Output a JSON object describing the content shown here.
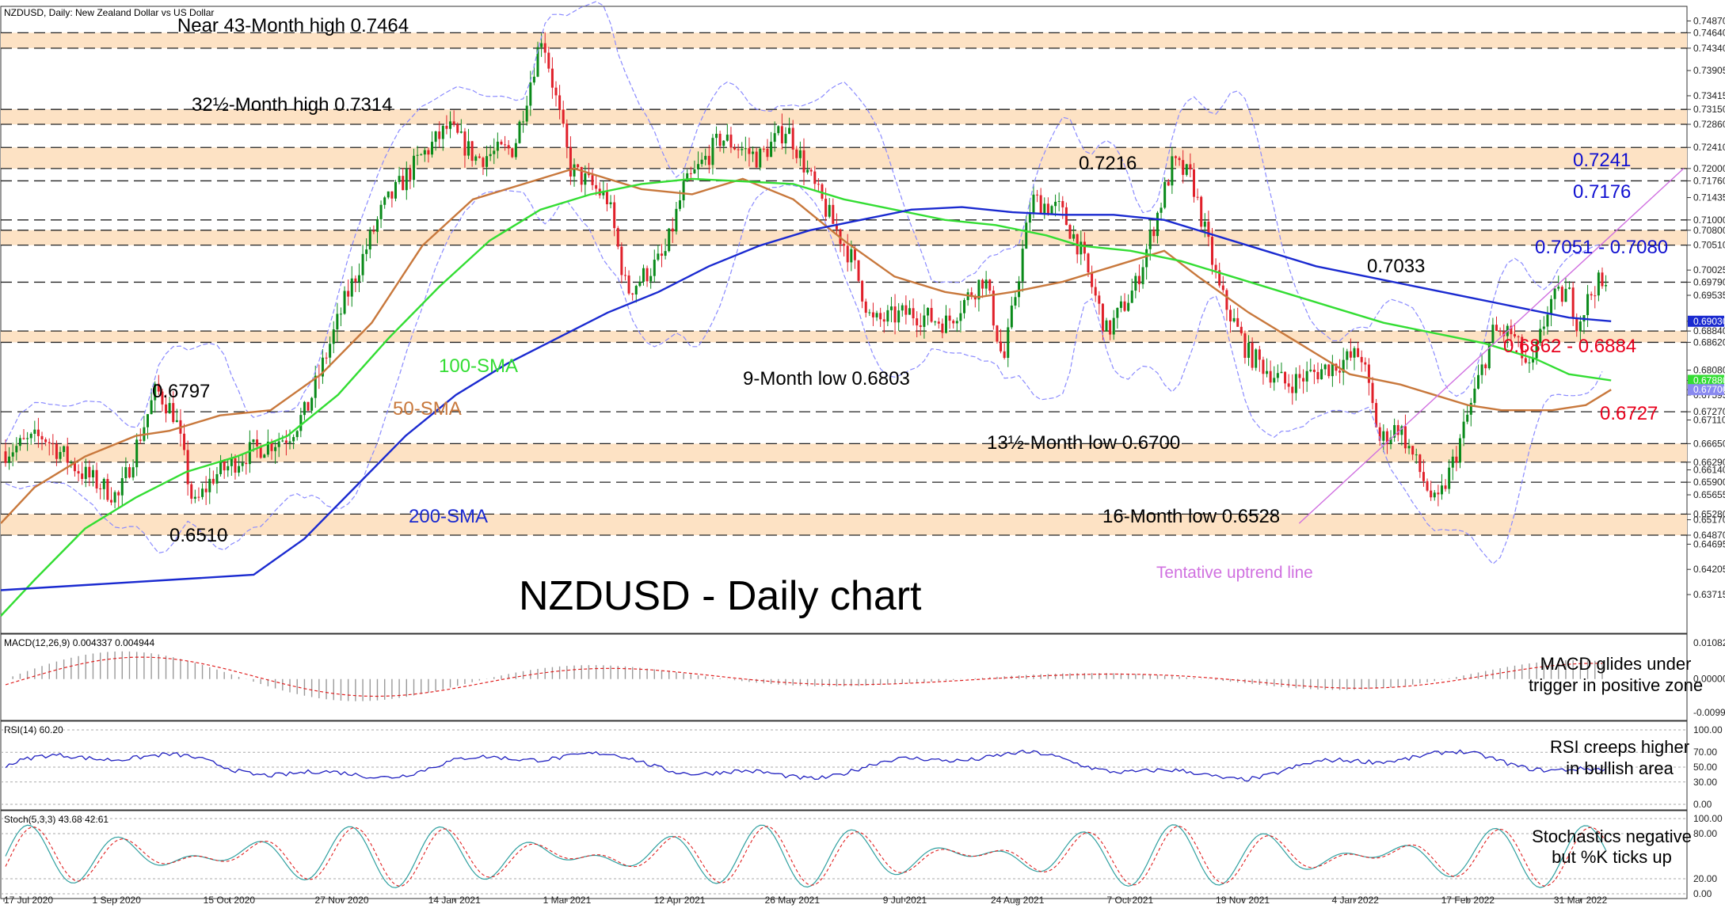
{
  "header": {
    "main_info": "NZDUSD, Daily:  New Zealand Dollar vs US Dollar",
    "macd_info": "MACD(12,26,9) 0.004337 0.004944",
    "rsi_info": "RSI(14) 60.20",
    "stoch_info": "Stoch(5,3,3) 43.68 42.61"
  },
  "colors": {
    "zone": "#fde2c4",
    "up_candle": "#0a8a1a",
    "down_candle": "#e0202a",
    "sma50": "#c8783c",
    "sma100": "#33dd33",
    "sma200": "#1a2ad0",
    "bollinger": "#8a8aff",
    "trendline": "#d070e0",
    "macd_hist": "#9a9a9a",
    "macd_signal": "#e02020",
    "rsi_line": "#2020c0",
    "stoch_k": "#30a0a0",
    "stoch_d": "#e02020",
    "label_red": "#e8001c",
    "label_blue": "#1010d0"
  },
  "chart_data": [
    {
      "type": "candlestick",
      "title": "NZDUSD - Daily chart",
      "ylim": [
        0.633,
        0.75
      ],
      "x_ticks": [
        "17 Jul 2020",
        "1 Sep 2020",
        "15 Oct 2020",
        "27 Nov 2020",
        "14 Jan 2021",
        "1 Mar 2021",
        "12 Apr 2021",
        "26 May 2021",
        "9 Jul 2021",
        "24 Aug 2021",
        "7 Oct 2021",
        "19 Nov 2021",
        "4 Jan 2022",
        "17 Feb 2022",
        "31 Mar 2022"
      ],
      "y_ticks": [
        "0.74870",
        "0.74640",
        "0.74340",
        "0.73905",
        "0.73415",
        "0.73150",
        "0.72860",
        "0.72410",
        "0.72000",
        "0.71760",
        "0.71435",
        "0.71000",
        "0.70800",
        "0.70510",
        "0.70025",
        "0.69790",
        "0.69535",
        "0.69030",
        "0.68840",
        "0.68620",
        "0.68080",
        "0.67880",
        "0.67700",
        "0.67595",
        "0.67270",
        "0.67110",
        "0.66650",
        "0.66290",
        "0.66140",
        "0.65900",
        "0.65655",
        "0.65280",
        "0.65170",
        "0.64870",
        "0.64695",
        "0.64205",
        "0.63715"
      ],
      "price_tag_values": [
        "0.69030",
        "0.67880",
        "0.67700"
      ],
      "resistance_zones": [
        [
          0.7434,
          0.7464
        ],
        [
          0.7286,
          0.7315
        ],
        [
          0.72,
          0.7241
        ],
        [
          0.7051,
          0.708
        ],
        [
          0.6862,
          0.6884
        ],
        [
          0.6629,
          0.6665
        ],
        [
          0.6487,
          0.6528
        ]
      ],
      "dashed_levels": [
        0.7464,
        0.7434,
        0.7315,
        0.7286,
        0.7241,
        0.72,
        0.7176,
        0.71,
        0.708,
        0.7051,
        0.6979,
        0.6884,
        0.6862,
        0.6727,
        0.6665,
        0.6629,
        0.659,
        0.6528,
        0.6487
      ],
      "series": [
        {
          "name": "50-SMA",
          "points": [
            [
              0.0,
              0.651
            ],
            [
              0.02,
              0.658
            ],
            [
              0.05,
              0.664
            ],
            [
              0.08,
              0.668
            ],
            [
              0.1,
              0.669
            ],
            [
              0.13,
              0.672
            ],
            [
              0.16,
              0.673
            ],
            [
              0.19,
              0.68
            ],
            [
              0.22,
              0.69
            ],
            [
              0.25,
              0.705
            ],
            [
              0.28,
              0.714
            ],
            [
              0.31,
              0.717
            ],
            [
              0.34,
              0.72
            ],
            [
              0.36,
              0.718
            ],
            [
              0.38,
              0.716
            ],
            [
              0.41,
              0.715
            ],
            [
              0.44,
              0.718
            ],
            [
              0.47,
              0.714
            ],
            [
              0.5,
              0.706
            ],
            [
              0.53,
              0.699
            ],
            [
              0.56,
              0.696
            ],
            [
              0.58,
              0.695
            ],
            [
              0.6,
              0.696
            ],
            [
              0.63,
              0.698
            ],
            [
              0.66,
              0.701
            ],
            [
              0.69,
              0.704
            ],
            [
              0.71,
              0.699
            ],
            [
              0.74,
              0.692
            ],
            [
              0.77,
              0.686
            ],
            [
              0.8,
              0.68
            ],
            [
              0.83,
              0.678
            ],
            [
              0.85,
              0.676
            ],
            [
              0.87,
              0.674
            ],
            [
              0.89,
              0.673
            ],
            [
              0.92,
              0.673
            ],
            [
              0.94,
              0.674
            ],
            [
              0.955,
              0.677
            ]
          ]
        },
        {
          "name": "100-SMA",
          "points": [
            [
              0.0,
              0.633
            ],
            [
              0.02,
              0.64
            ],
            [
              0.05,
              0.65
            ],
            [
              0.08,
              0.656
            ],
            [
              0.11,
              0.661
            ],
            [
              0.14,
              0.664
            ],
            [
              0.17,
              0.668
            ],
            [
              0.2,
              0.676
            ],
            [
              0.23,
              0.687
            ],
            [
              0.26,
              0.697
            ],
            [
              0.29,
              0.706
            ],
            [
              0.32,
              0.712
            ],
            [
              0.35,
              0.715
            ],
            [
              0.38,
              0.717
            ],
            [
              0.41,
              0.718
            ],
            [
              0.44,
              0.7175
            ],
            [
              0.47,
              0.717
            ],
            [
              0.5,
              0.714
            ],
            [
              0.53,
              0.712
            ],
            [
              0.56,
              0.71
            ],
            [
              0.59,
              0.709
            ],
            [
              0.62,
              0.707
            ],
            [
              0.64,
              0.705
            ],
            [
              0.67,
              0.704
            ],
            [
              0.7,
              0.702
            ],
            [
              0.73,
              0.699
            ],
            [
              0.76,
              0.696
            ],
            [
              0.79,
              0.693
            ],
            [
              0.82,
              0.69
            ],
            [
              0.85,
              0.688
            ],
            [
              0.88,
              0.686
            ],
            [
              0.91,
              0.683
            ],
            [
              0.93,
              0.68
            ],
            [
              0.955,
              0.6788
            ]
          ]
        },
        {
          "name": "200-SMA",
          "points": [
            [
              0.0,
              0.638
            ],
            [
              0.05,
              0.639
            ],
            [
              0.1,
              0.64
            ],
            [
              0.15,
              0.641
            ],
            [
              0.18,
              0.648
            ],
            [
              0.21,
              0.658
            ],
            [
              0.24,
              0.668
            ],
            [
              0.27,
              0.676
            ],
            [
              0.3,
              0.682
            ],
            [
              0.33,
              0.687
            ],
            [
              0.36,
              0.692
            ],
            [
              0.39,
              0.696
            ],
            [
              0.42,
              0.701
            ],
            [
              0.45,
              0.705
            ],
            [
              0.48,
              0.708
            ],
            [
              0.51,
              0.71
            ],
            [
              0.54,
              0.712
            ],
            [
              0.57,
              0.7125
            ],
            [
              0.6,
              0.7115
            ],
            [
              0.63,
              0.711
            ],
            [
              0.66,
              0.711
            ],
            [
              0.69,
              0.71
            ],
            [
              0.72,
              0.707
            ],
            [
              0.75,
              0.704
            ],
            [
              0.78,
              0.701
            ],
            [
              0.81,
              0.699
            ],
            [
              0.84,
              0.697
            ],
            [
              0.87,
              0.695
            ],
            [
              0.9,
              0.693
            ],
            [
              0.93,
              0.691
            ],
            [
              0.955,
              0.6903
            ]
          ]
        }
      ],
      "annotations": [
        {
          "text": "Near 43-Month high 0.7464",
          "color": "#000000"
        },
        {
          "text": "32½-Month high 0.7314",
          "color": "#000000"
        },
        {
          "text": "0.7216",
          "color": "#000000"
        },
        {
          "text": "0.7241",
          "color": "#1010d0"
        },
        {
          "text": "0.7176",
          "color": "#1010d0"
        },
        {
          "text": "0.7051 - 0.7080",
          "color": "#1010d0"
        },
        {
          "text": "0.7033",
          "color": "#000000"
        },
        {
          "text": "0.6862 - 0.6884",
          "color": "#e8001c"
        },
        {
          "text": "0.6727",
          "color": "#e8001c"
        },
        {
          "text": "0.6797",
          "color": "#000000"
        },
        {
          "text": "100-SMA",
          "color": "#33dd33"
        },
        {
          "text": "50-SMA",
          "color": "#c8783c"
        },
        {
          "text": "200-SMA",
          "color": "#1a2ad0"
        },
        {
          "text": "9-Month low 0.6803",
          "color": "#000000"
        },
        {
          "text": "13½-Month low 0.6700",
          "color": "#000000"
        },
        {
          "text": "16-Month low 0.6528",
          "color": "#000000"
        },
        {
          "text": "0.6510",
          "color": "#000000"
        },
        {
          "text": "Tentative uptrend line",
          "color": "#d070e0"
        }
      ]
    },
    {
      "type": "line",
      "name": "MACD(12,26,9)",
      "ylim": [
        -0.009998,
        0.010825
      ],
      "y_ticks": [
        "0.010825",
        "0.000000",
        "-0.009998"
      ],
      "annotation": [
        "MACD glides under",
        "trigger in positive zone"
      ]
    },
    {
      "type": "line",
      "name": "RSI(14)",
      "ylim": [
        0,
        100
      ],
      "y_ticks": [
        "100.00",
        "70.00",
        "50.00",
        "30.00",
        "0.00"
      ],
      "annotation": [
        "RSI creeps higher",
        "in bullish area"
      ]
    },
    {
      "type": "line",
      "name": "Stoch(5,3,3)",
      "ylim": [
        0,
        100
      ],
      "y_ticks": [
        "100.00",
        "80.00",
        "20.00",
        "0.00"
      ],
      "annotation": [
        "Stochastics negative",
        "but %K ticks up"
      ]
    }
  ]
}
